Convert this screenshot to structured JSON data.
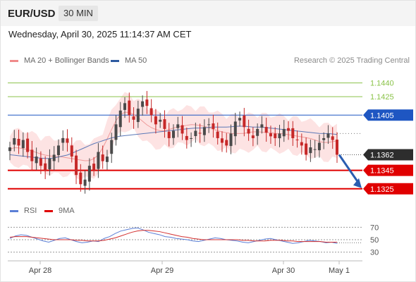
{
  "header": {
    "symbol": "EUR/USD",
    "timeframe": "30 MIN",
    "datetime": "Wednesday, April 30, 2025 11:14:37 AM CET",
    "source": "Research © 2025 Trading Central"
  },
  "legend": {
    "ma20_label": "MA 20 + Bollinger Bands",
    "ma50_label": "MA 50",
    "rsi_label": "RSI",
    "ma9_label": "9MA"
  },
  "colors": {
    "up": "#4a4a4a",
    "down": "#c62828",
    "bollinger_fill": "#fde0e0",
    "ma20": "#ef9a9a",
    "ma50": "#5c79b8",
    "resistance_green": "#8bc34a",
    "resistance_blue": "#1e56c2",
    "support_red": "#e00000",
    "last_price_bg": "#2d2d2d",
    "rsi_line": "#5b7fd6",
    "rsi_ma": "#d32f2f",
    "arrow": "#2a5db0"
  },
  "chart_data": [
    {
      "type": "candlestick",
      "title": "",
      "ylim": [
        1.1308,
        1.1455
      ],
      "x_ticks": [
        "Apr 28",
        "Apr 29",
        "Apr 30",
        "May 1"
      ],
      "levels": [
        {
          "price": 1.144,
          "label": "1.1440",
          "kind": "resistance",
          "color": "#8bc34a",
          "tag": false
        },
        {
          "price": 1.1425,
          "label": "1.1425",
          "kind": "resistance",
          "color": "#8bc34a",
          "tag": false
        },
        {
          "price": 1.1405,
          "label": "1.1405",
          "kind": "pivot",
          "color": "#1e56c2",
          "tag": true
        },
        {
          "price": 1.1362,
          "label": "1.1362",
          "kind": "last",
          "color": "#2d2d2d",
          "tag": true
        },
        {
          "price": 1.1345,
          "label": "1.1345",
          "kind": "support",
          "color": "#e00000",
          "tag": true
        },
        {
          "price": 1.1325,
          "label": "1.1325",
          "kind": "support",
          "color": "#e00000",
          "tag": true
        }
      ],
      "last_price": 1.1362,
      "forecast_target": 1.1325,
      "close_path": [
        1.137,
        1.138,
        1.1372,
        1.1378,
        1.1365,
        1.1355,
        1.136,
        1.135,
        1.1345,
        1.1358,
        1.1362,
        1.1372,
        1.138,
        1.1375,
        1.136,
        1.134,
        1.133,
        1.1335,
        1.135,
        1.1345,
        1.1365,
        1.1355,
        1.136,
        1.1378,
        1.1395,
        1.141,
        1.1418,
        1.1405,
        1.14,
        1.1412,
        1.142,
        1.1415,
        1.1405,
        1.1395,
        1.14,
        1.139,
        1.138,
        1.1388,
        1.1395,
        1.1385,
        1.1378,
        1.138,
        1.1388,
        1.1385,
        1.1392,
        1.1395,
        1.139,
        1.138,
        1.1375,
        1.1372,
        1.1385,
        1.1398,
        1.1402,
        1.1392,
        1.1385,
        1.138,
        1.139,
        1.1395,
        1.1386,
        1.1382,
        1.138,
        1.1385,
        1.139,
        1.1388,
        1.138,
        1.1378,
        1.1372,
        1.1362,
        1.137,
        1.1368,
        1.1375,
        1.138,
        1.1385,
        1.1378,
        1.1362
      ],
      "ma20_path": [
        1.1368,
        1.137,
        1.1369,
        1.1368,
        1.1366,
        1.1364,
        1.1362,
        1.1361,
        1.136,
        1.136,
        1.1359,
        1.1358,
        1.1357,
        1.1356,
        1.1355,
        1.1357,
        1.1362,
        1.1372,
        1.1385,
        1.1398,
        1.1406,
        1.1409,
        1.1407,
        1.1403,
        1.1398,
        1.1393,
        1.139,
        1.1388,
        1.1388,
        1.139,
        1.1392,
        1.1393,
        1.1394,
        1.1395,
        1.1394,
        1.1393,
        1.1391,
        1.1389,
        1.1387,
        1.1386,
        1.1385,
        1.1385,
        1.1385,
        1.1386,
        1.1387,
        1.1387,
        1.1386,
        1.1386,
        1.1385,
        1.1385,
        1.1384,
        1.1383,
        1.1382,
        1.1381,
        1.138,
        1.1378,
        1.1376,
        1.1375,
        1.1376,
        1.1377
      ],
      "ma50_path": [
        1.1362,
        1.1361,
        1.136,
        1.1359,
        1.1358,
        1.1358,
        1.136,
        1.1362,
        1.1366,
        1.137,
        1.1374,
        1.1377,
        1.138,
        1.1382,
        1.1383,
        1.1384,
        1.1385,
        1.1386,
        1.1387,
        1.1388,
        1.1389,
        1.139,
        1.1391,
        1.1391,
        1.1392,
        1.1392,
        1.1392,
        1.1393,
        1.1393,
        1.1392,
        1.1392,
        1.1391,
        1.139,
        1.1389,
        1.1388,
        1.1387,
        1.1386,
        1.1385,
        1.1385,
        1.1384
      ]
    },
    {
      "type": "line",
      "title": "",
      "ylim": [
        25,
        75
      ],
      "y_ticks": [
        70,
        50,
        30
      ],
      "series": [
        {
          "name": "RSI",
          "color": "#5b7fd6",
          "values": [
            52,
            56,
            58,
            57,
            54,
            51,
            48,
            46,
            49,
            52,
            53,
            50,
            47,
            45,
            46,
            48,
            47,
            52,
            55,
            60,
            64,
            66,
            68,
            69,
            66,
            62,
            60,
            58,
            55,
            54,
            52,
            51,
            50,
            48,
            47,
            49,
            51,
            53,
            52,
            50,
            49,
            48,
            46,
            45,
            47,
            49,
            51,
            52,
            50,
            48,
            46,
            44,
            45,
            47,
            49,
            48,
            47,
            45,
            46,
            44
          ]
        },
        {
          "name": "9MA",
          "color": "#d32f2f",
          "values": [
            54,
            55,
            55,
            55,
            54,
            53,
            52,
            51,
            50,
            50,
            50,
            50,
            49,
            49,
            48,
            48,
            48,
            49,
            51,
            53,
            56,
            59,
            62,
            64,
            65,
            65,
            64,
            63,
            61,
            59,
            57,
            55,
            54,
            52,
            51,
            50,
            50,
            50,
            50,
            50,
            50,
            50,
            49,
            49,
            48,
            48,
            48,
            49,
            49,
            49,
            48,
            48,
            47,
            47,
            47,
            47,
            47,
            46,
            46,
            46
          ]
        }
      ]
    }
  ]
}
